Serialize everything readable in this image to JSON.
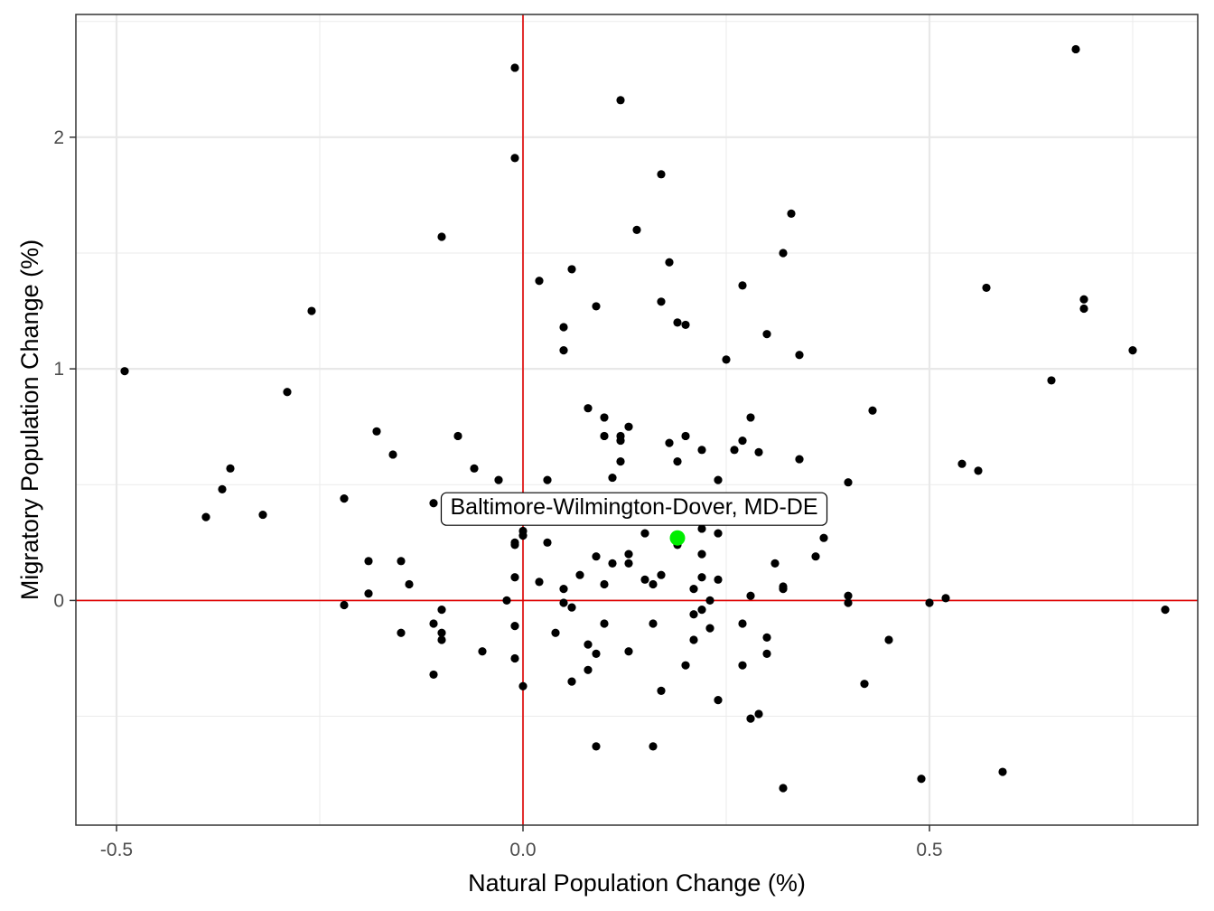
{
  "chart_data": {
    "type": "scatter",
    "title": "",
    "xlabel": "Natural Population Change (%)",
    "ylabel": "Migratory Population Change (%)",
    "xlim": [
      -0.55,
      0.83
    ],
    "ylim": [
      -0.97,
      2.53
    ],
    "x_ticks": [
      -0.5,
      0.0,
      0.5
    ],
    "x_tick_labels": [
      "-0.5",
      "0.0",
      "0.5"
    ],
    "y_ticks": [
      0,
      1,
      2
    ],
    "y_tick_labels": [
      "0",
      "1",
      "2"
    ],
    "grid": true,
    "reference_lines": {
      "x": 0,
      "y": 0,
      "color": "#e00000"
    },
    "point_color": "#000000",
    "highlight_color": "#00ee00",
    "highlight": {
      "label": "Baltimore-Wilmington-Dover, MD-DE",
      "x": 0.19,
      "y": 0.27
    },
    "points": [
      [
        -0.49,
        0.99
      ],
      [
        -0.39,
        0.36
      ],
      [
        -0.37,
        0.48
      ],
      [
        -0.36,
        0.57
      ],
      [
        -0.32,
        0.37
      ],
      [
        -0.29,
        0.9
      ],
      [
        -0.26,
        1.25
      ],
      [
        -0.22,
        0.44
      ],
      [
        -0.22,
        -0.02
      ],
      [
        -0.19,
        0.17
      ],
      [
        -0.19,
        0.03
      ],
      [
        -0.18,
        0.73
      ],
      [
        -0.16,
        0.63
      ],
      [
        -0.15,
        0.17
      ],
      [
        -0.15,
        -0.14
      ],
      [
        -0.14,
        0.07
      ],
      [
        -0.11,
        0.42
      ],
      [
        -0.11,
        -0.1
      ],
      [
        -0.11,
        -0.32
      ],
      [
        -0.1,
        1.57
      ],
      [
        -0.1,
        -0.04
      ],
      [
        -0.1,
        -0.14
      ],
      [
        -0.1,
        -0.17
      ],
      [
        -0.08,
        0.71
      ],
      [
        -0.07,
        0.44
      ],
      [
        -0.06,
        0.57
      ],
      [
        -0.05,
        0.42
      ],
      [
        -0.05,
        0.36
      ],
      [
        -0.05,
        -0.22
      ],
      [
        -0.03,
        0.52
      ],
      [
        -0.02,
        0.0
      ],
      [
        -0.01,
        2.3
      ],
      [
        -0.01,
        1.91
      ],
      [
        -0.01,
        0.24
      ],
      [
        -0.01,
        0.25
      ],
      [
        -0.01,
        0.1
      ],
      [
        -0.01,
        -0.11
      ],
      [
        -0.01,
        -0.25
      ],
      [
        0.0,
        0.3
      ],
      [
        0.0,
        0.28
      ],
      [
        0.0,
        -0.37
      ],
      [
        0.02,
        1.38
      ],
      [
        0.02,
        0.08
      ],
      [
        0.03,
        0.52
      ],
      [
        0.03,
        0.25
      ],
      [
        0.04,
        -0.14
      ],
      [
        0.05,
        1.18
      ],
      [
        0.05,
        1.08
      ],
      [
        0.05,
        0.05
      ],
      [
        0.05,
        -0.01
      ],
      [
        0.06,
        1.43
      ],
      [
        0.06,
        -0.03
      ],
      [
        0.06,
        -0.35
      ],
      [
        0.07,
        0.11
      ],
      [
        0.08,
        0.83
      ],
      [
        0.08,
        -0.19
      ],
      [
        0.08,
        -0.3
      ],
      [
        0.09,
        1.27
      ],
      [
        0.09,
        0.19
      ],
      [
        0.09,
        -0.23
      ],
      [
        0.09,
        -0.63
      ],
      [
        0.1,
        0.79
      ],
      [
        0.1,
        0.71
      ],
      [
        0.1,
        0.07
      ],
      [
        0.1,
        -0.1
      ],
      [
        0.11,
        0.53
      ],
      [
        0.11,
        0.16
      ],
      [
        0.12,
        2.16
      ],
      [
        0.12,
        0.71
      ],
      [
        0.12,
        0.69
      ],
      [
        0.12,
        0.6
      ],
      [
        0.13,
        0.75
      ],
      [
        0.13,
        0.2
      ],
      [
        0.13,
        0.16
      ],
      [
        0.13,
        -0.22
      ],
      [
        0.14,
        1.6
      ],
      [
        0.15,
        0.29
      ],
      [
        0.15,
        0.09
      ],
      [
        0.16,
        0.07
      ],
      [
        0.16,
        -0.1
      ],
      [
        0.16,
        -0.63
      ],
      [
        0.17,
        1.84
      ],
      [
        0.17,
        1.29
      ],
      [
        0.17,
        0.11
      ],
      [
        0.17,
        -0.39
      ],
      [
        0.18,
        1.46
      ],
      [
        0.18,
        0.68
      ],
      [
        0.19,
        1.2
      ],
      [
        0.19,
        0.6
      ],
      [
        0.19,
        0.24
      ],
      [
        0.2,
        1.19
      ],
      [
        0.2,
        0.71
      ],
      [
        0.2,
        -0.28
      ],
      [
        0.21,
        0.05
      ],
      [
        0.21,
        -0.06
      ],
      [
        0.21,
        -0.17
      ],
      [
        0.22,
        0.65
      ],
      [
        0.22,
        0.31
      ],
      [
        0.22,
        0.2
      ],
      [
        0.22,
        0.1
      ],
      [
        0.22,
        -0.04
      ],
      [
        0.23,
        0.0
      ],
      [
        0.23,
        -0.12
      ],
      [
        0.24,
        0.52
      ],
      [
        0.24,
        0.29
      ],
      [
        0.24,
        0.09
      ],
      [
        0.24,
        -0.43
      ],
      [
        0.25,
        1.04
      ],
      [
        0.26,
        0.65
      ],
      [
        0.27,
        1.36
      ],
      [
        0.27,
        0.69
      ],
      [
        0.27,
        -0.1
      ],
      [
        0.27,
        -0.28
      ],
      [
        0.28,
        0.79
      ],
      [
        0.28,
        0.02
      ],
      [
        0.28,
        -0.51
      ],
      [
        0.29,
        0.64
      ],
      [
        0.29,
        0.35
      ],
      [
        0.29,
        -0.49
      ],
      [
        0.3,
        1.15
      ],
      [
        0.3,
        -0.16
      ],
      [
        0.3,
        -0.23
      ],
      [
        0.31,
        0.16
      ],
      [
        0.32,
        1.5
      ],
      [
        0.32,
        0.06
      ],
      [
        0.32,
        0.05
      ],
      [
        0.32,
        -0.81
      ],
      [
        0.33,
        1.67
      ],
      [
        0.34,
        1.06
      ],
      [
        0.34,
        0.61
      ],
      [
        0.36,
        0.19
      ],
      [
        0.37,
        0.27
      ],
      [
        0.4,
        0.51
      ],
      [
        0.4,
        0.02
      ],
      [
        0.4,
        -0.01
      ],
      [
        0.42,
        -0.36
      ],
      [
        0.43,
        0.82
      ],
      [
        0.45,
        -0.17
      ],
      [
        0.49,
        -0.77
      ],
      [
        0.5,
        -0.01
      ],
      [
        0.52,
        0.01
      ],
      [
        0.54,
        0.59
      ],
      [
        0.56,
        0.56
      ],
      [
        0.57,
        1.35
      ],
      [
        0.59,
        -0.74
      ],
      [
        0.65,
        0.95
      ],
      [
        0.68,
        2.38
      ],
      [
        0.69,
        1.3
      ],
      [
        0.69,
        1.26
      ],
      [
        0.75,
        1.08
      ],
      [
        0.79,
        -0.04
      ]
    ]
  }
}
